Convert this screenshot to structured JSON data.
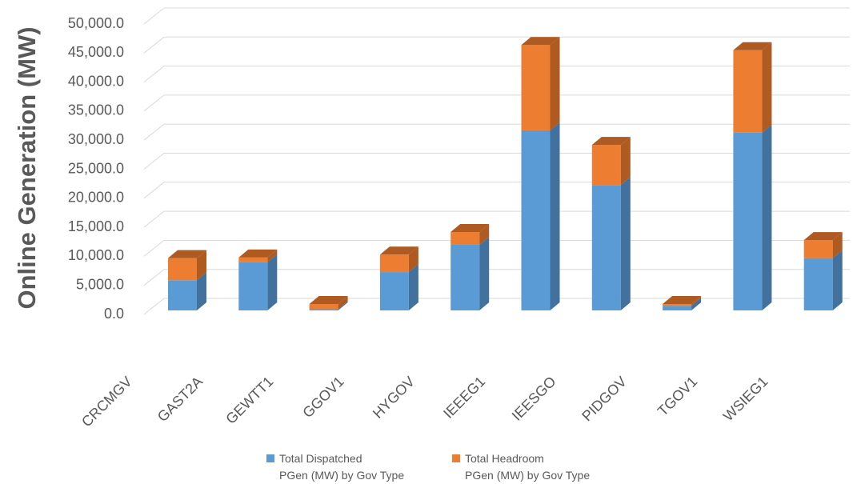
{
  "chart_data": {
    "type": "bar3d_stacked",
    "y_label": "Online Generation (MW)",
    "categories": [
      "CRCMGV",
      "GAST2A",
      "GEWTT1",
      "GGOV1",
      "HYGOV",
      "IEEEG1",
      "IEESGO",
      "PIDGOV",
      "TGOV1",
      "WSIEG1"
    ],
    "series": [
      {
        "name": "Total Dispatched\nPGen (MW) by Gov Type",
        "color": "#5b9bd5",
        "side": "#41719c",
        "top": "#7eb3e3",
        "values": [
          5200,
          8300,
          200,
          6600,
          11300,
          31000,
          21600,
          800,
          30600,
          9000
        ]
      },
      {
        "name": "Total Headroom\nPGen (MW) by Gov Type",
        "color": "#ed7d31",
        "side": "#ae5a21",
        "top": "#f29a5c",
        "values": [
          3800,
          800,
          900,
          3000,
          2200,
          14700,
          6900,
          300,
          14200,
          3100
        ]
      }
    ],
    "ylim": [
      0,
      50000
    ],
    "yticks": [
      {
        "value": 0,
        "label": "0.0"
      },
      {
        "value": 5000,
        "label": "5,000.0"
      },
      {
        "value": 10000,
        "label": "10,000.0"
      },
      {
        "value": 15000,
        "label": "15,000.0"
      },
      {
        "value": 20000,
        "label": "20,000.0"
      },
      {
        "value": 25000,
        "label": "25,000.0"
      },
      {
        "value": 30000,
        "label": "30,000.0"
      },
      {
        "value": 35000,
        "label": "35,000.0"
      },
      {
        "value": 40000,
        "label": "40,000.0"
      },
      {
        "value": 45000,
        "label": "45,000.0"
      },
      {
        "value": 50000,
        "label": "50,000.0"
      }
    ],
    "grid": true
  }
}
